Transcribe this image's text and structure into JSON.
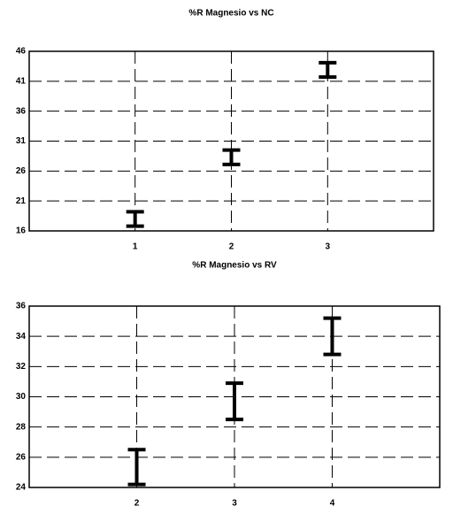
{
  "chart_data": [
    {
      "type": "errorbar",
      "title": "%R Magnesio vs NC",
      "x": [
        1,
        2,
        3
      ],
      "values": [
        18.0,
        28.3,
        42.9
      ],
      "errors": [
        1.2,
        1.2,
        1.2
      ],
      "color": "#000000",
      "xlim": [
        -0.1,
        4.1
      ],
      "xticks": [
        1,
        2,
        3
      ],
      "ylim": [
        16,
        46
      ],
      "yticks": [
        16,
        21,
        26,
        31,
        36,
        41,
        46
      ],
      "grid": true
    },
    {
      "type": "errorbar",
      "title": "%R Magnesio vs RV",
      "x": [
        2,
        3,
        4
      ],
      "values": [
        25.35,
        29.7,
        34.0
      ],
      "errors": [
        1.15,
        1.2,
        1.2
      ],
      "color": "#000000",
      "xlim": [
        0.9,
        5.1
      ],
      "xticks": [
        2,
        3,
        4
      ],
      "ylim": [
        24,
        36
      ],
      "yticks": [
        24,
        26,
        28,
        30,
        32,
        34,
        36
      ],
      "grid": true
    }
  ]
}
